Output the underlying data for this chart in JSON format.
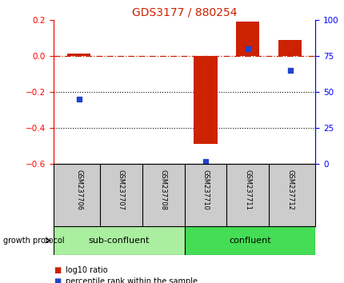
{
  "title": "GDS3177 / 880254",
  "samples": [
    "GSM237706",
    "GSM237707",
    "GSM237708",
    "GSM237710",
    "GSM237711",
    "GSM237712"
  ],
  "log10_ratio": [
    0.015,
    0.0,
    0.0,
    -0.49,
    0.19,
    0.09
  ],
  "percentile_rank_pct": [
    45,
    null,
    null,
    2,
    80,
    65
  ],
  "ylim_left": [
    -0.6,
    0.2
  ],
  "ylim_right": [
    0,
    100
  ],
  "yticks_left": [
    -0.6,
    -0.4,
    -0.2,
    0.0,
    0.2
  ],
  "yticks_right": [
    0,
    25,
    50,
    75,
    100
  ],
  "hline_y": 0.0,
  "dotted_lines": [
    -0.2,
    -0.4
  ],
  "bar_color": "#cc2200",
  "dot_color": "#2244cc",
  "group1_label": "sub-confluent",
  "group2_label": "confluent",
  "group_color1": "#aaeea0",
  "group_color2": "#44dd55",
  "protocol_label": "growth protocol",
  "legend1": "log10 ratio",
  "legend2": "percentile rank within the sample",
  "bar_width": 0.55,
  "background_color": "#ffffff",
  "label_bg": "#cccccc",
  "title_color": "#cc2200"
}
